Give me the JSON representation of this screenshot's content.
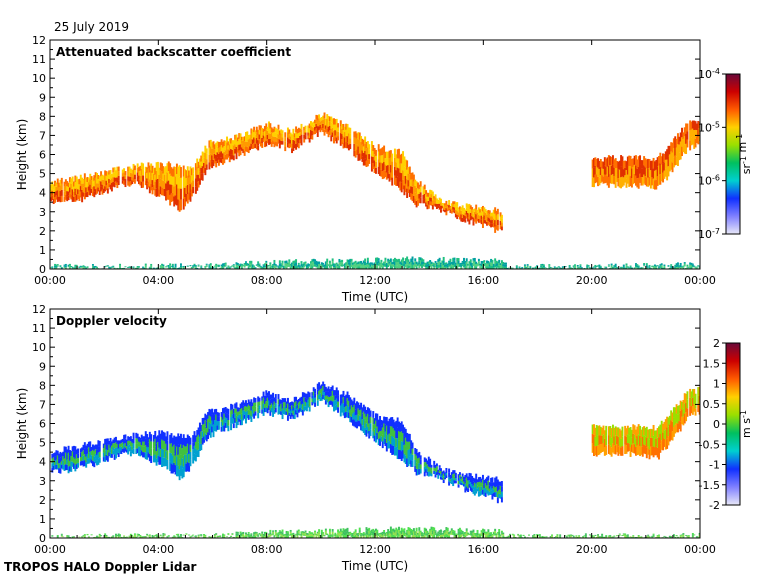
{
  "date_label": "25 July 2019",
  "footer": "TROPOS HALO Doppler Lidar",
  "chart_data": [
    {
      "type": "heatmap",
      "title": "Attenuated backscatter coefficient",
      "xlabel": "Time (UTC)",
      "ylabel": "Height (km)",
      "x_ticks": [
        "00:00",
        "04:00",
        "08:00",
        "12:00",
        "16:00",
        "20:00",
        "00:00"
      ],
      "y_ticks": [
        "0",
        "1",
        "2",
        "3",
        "4",
        "5",
        "6",
        "7",
        "8",
        "9",
        "10",
        "11",
        "12"
      ],
      "ylim": [
        0,
        12
      ],
      "xlim_hours": [
        0,
        24
      ],
      "grid": false,
      "colorbar": {
        "scale": "log",
        "labels": [
          "10-4",
          "10-5",
          "10-6",
          "10-7"
        ],
        "unit": "sr-1 m-1",
        "colors": [
          "#6a0a3a",
          "#cc0000",
          "#ff5a00",
          "#ffd000",
          "#9adf00",
          "#00c060",
          "#00d0d0",
          "#1030ff",
          "#8080ff",
          "#e8e8f8"
        ]
      },
      "layers": [
        {
          "name": "cloud-band-main",
          "from_h": 0.0,
          "to_h": 16.7,
          "top": [
            [
              0.0,
              4.5
            ],
            [
              1.0,
              4.8
            ],
            [
              2.5,
              5.2
            ],
            [
              3.2,
              5.4
            ],
            [
              4.3,
              5.5
            ],
            [
              5.2,
              5.2
            ],
            [
              5.8,
              6.6
            ],
            [
              7.0,
              7.0
            ],
            [
              8.0,
              7.6
            ],
            [
              8.9,
              7.2
            ],
            [
              10.0,
              8.1
            ],
            [
              11.0,
              7.5
            ],
            [
              12.0,
              6.4
            ],
            [
              13.0,
              6.1
            ],
            [
              13.5,
              4.6
            ],
            [
              14.4,
              3.6
            ],
            [
              15.2,
              3.3
            ],
            [
              16.7,
              3.0
            ]
          ],
          "bottom": [
            [
              0.0,
              3.5
            ],
            [
              1.0,
              3.6
            ],
            [
              2.5,
              4.3
            ],
            [
              3.2,
              4.5
            ],
            [
              4.3,
              3.6
            ],
            [
              4.8,
              3.1
            ],
            [
              5.2,
              3.7
            ],
            [
              5.8,
              5.3
            ],
            [
              7.0,
              6.0
            ],
            [
              8.0,
              6.6
            ],
            [
              8.9,
              6.2
            ],
            [
              10.0,
              7.2
            ],
            [
              11.0,
              6.2
            ],
            [
              12.0,
              5.1
            ],
            [
              13.0,
              4.1
            ],
            [
              13.5,
              3.4
            ],
            [
              14.4,
              3.1
            ],
            [
              15.2,
              2.6
            ],
            [
              16.7,
              1.9
            ]
          ],
          "colors": [
            "#ff7000",
            "#e03000",
            "#ff9a00",
            "#ffd000"
          ]
        },
        {
          "name": "cloud-band-late",
          "from_h": 20.0,
          "to_h": 24.0,
          "top": [
            [
              21.5,
              5.8
            ],
            [
              22.4,
              5.8
            ],
            [
              23.0,
              6.7
            ],
            [
              23.5,
              7.6
            ],
            [
              24.0,
              7.8
            ]
          ],
          "bottom": [
            [
              21.5,
              4.4
            ],
            [
              22.4,
              4.2
            ],
            [
              23.0,
              5.2
            ],
            [
              23.5,
              6.3
            ],
            [
              24.0,
              6.6
            ]
          ],
          "colors": [
            "#ff7000",
            "#ffb000",
            "#e03000"
          ]
        },
        {
          "name": "boundary-layer",
          "from_h": 0.0,
          "to_h": 24.0,
          "top": [
            [
              0.0,
              0.1
            ],
            [
              6.0,
              0.15
            ],
            [
              8.0,
              0.3
            ],
            [
              13.0,
              0.5
            ],
            [
              16.5,
              0.4
            ],
            [
              17.0,
              0.08
            ],
            [
              24.0,
              0.2
            ]
          ],
          "bottom": [
            [
              0.0,
              0.0
            ],
            [
              24.0,
              0.0
            ]
          ],
          "colors": [
            "#20c080",
            "#50d080",
            "#00a0a0"
          ]
        }
      ]
    },
    {
      "type": "heatmap",
      "title": "Doppler velocity",
      "xlabel": "Time (UTC)",
      "ylabel": "Height (km)",
      "x_ticks": [
        "00:00",
        "04:00",
        "08:00",
        "12:00",
        "16:00",
        "20:00",
        "00:00"
      ],
      "y_ticks": [
        "0",
        "1",
        "2",
        "3",
        "4",
        "5",
        "6",
        "7",
        "8",
        "9",
        "10",
        "11",
        "12"
      ],
      "ylim": [
        0,
        12
      ],
      "xlim_hours": [
        0,
        24
      ],
      "grid": false,
      "colorbar": {
        "scale": "linear",
        "labels": [
          "2",
          "1.5",
          "1",
          "0.5",
          "0",
          "-0.5",
          "-1",
          "-1.5",
          "-2"
        ],
        "unit": "m s-1",
        "colors": [
          "#6a0a3a",
          "#cc0000",
          "#ff5a00",
          "#ffd000",
          "#9adf00",
          "#00c060",
          "#00d0d0",
          "#1030ff",
          "#8080ff",
          "#e8e8f8"
        ]
      },
      "layers": [
        {
          "name": "cloud-band-main",
          "from_h": 0.0,
          "to_h": 16.7,
          "top": [
            [
              0.0,
              4.5
            ],
            [
              1.0,
              4.8
            ],
            [
              2.5,
              5.2
            ],
            [
              3.2,
              5.4
            ],
            [
              4.3,
              5.5
            ],
            [
              5.2,
              5.2
            ],
            [
              5.8,
              6.6
            ],
            [
              7.0,
              7.0
            ],
            [
              8.0,
              7.6
            ],
            [
              8.9,
              7.2
            ],
            [
              10.0,
              8.1
            ],
            [
              11.0,
              7.5
            ],
            [
              12.0,
              6.4
            ],
            [
              13.0,
              6.1
            ],
            [
              13.5,
              4.6
            ],
            [
              14.4,
              3.6
            ],
            [
              15.2,
              3.3
            ],
            [
              16.7,
              3.0
            ]
          ],
          "bottom": [
            [
              0.0,
              3.5
            ],
            [
              1.0,
              3.6
            ],
            [
              2.5,
              4.3
            ],
            [
              3.2,
              4.5
            ],
            [
              4.3,
              3.6
            ],
            [
              4.8,
              3.1
            ],
            [
              5.2,
              3.7
            ],
            [
              5.8,
              5.3
            ],
            [
              7.0,
              6.0
            ],
            [
              8.0,
              6.6
            ],
            [
              8.9,
              6.2
            ],
            [
              10.0,
              7.2
            ],
            [
              11.0,
              6.2
            ],
            [
              12.0,
              5.1
            ],
            [
              13.0,
              4.1
            ],
            [
              13.5,
              3.4
            ],
            [
              14.4,
              3.1
            ],
            [
              15.2,
              2.6
            ],
            [
              16.7,
              1.9
            ]
          ],
          "colors": [
            "#1030ff",
            "#00a0d0",
            "#40c040",
            "#1030ff"
          ]
        },
        {
          "name": "cloud-band-late",
          "from_h": 20.0,
          "to_h": 24.0,
          "top": [
            [
              21.5,
              5.8
            ],
            [
              22.4,
              5.8
            ],
            [
              23.0,
              6.7
            ],
            [
              23.5,
              7.6
            ],
            [
              24.0,
              7.8
            ]
          ],
          "bottom": [
            [
              21.5,
              4.4
            ],
            [
              22.4,
              4.2
            ],
            [
              23.0,
              5.2
            ],
            [
              23.5,
              6.3
            ],
            [
              24.0,
              6.6
            ]
          ],
          "colors": [
            "#ffa000",
            "#ff7000",
            "#9adf00"
          ]
        },
        {
          "name": "boundary-layer",
          "from_h": 0.0,
          "to_h": 24.0,
          "top": [
            [
              0.0,
              0.05
            ],
            [
              6.0,
              0.1
            ],
            [
              8.0,
              0.25
            ],
            [
              13.0,
              0.45
            ],
            [
              16.5,
              0.35
            ],
            [
              17.0,
              0.05
            ],
            [
              24.0,
              0.1
            ]
          ],
          "bottom": [
            [
              0.0,
              0.0
            ],
            [
              24.0,
              0.0
            ]
          ],
          "colors": [
            "#50e050",
            "#90e050",
            "#40c060"
          ]
        }
      ]
    }
  ]
}
